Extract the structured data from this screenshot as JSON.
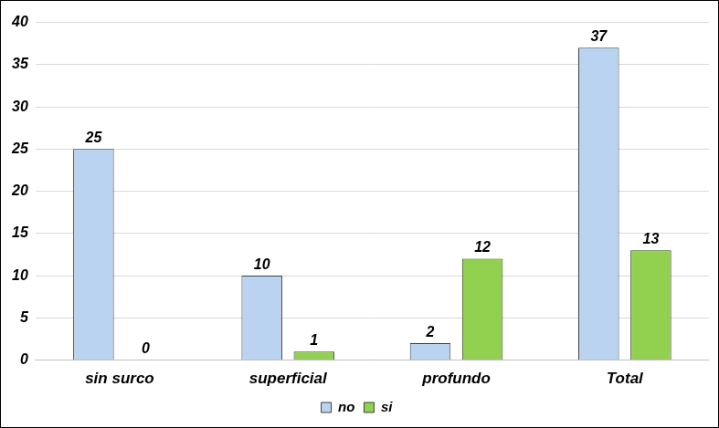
{
  "chart_data": {
    "type": "bar",
    "categories": [
      "sin surco",
      "superficial",
      "profundo",
      "Total"
    ],
    "series": [
      {
        "name": "no",
        "color": "#b9d3f1",
        "values": [
          25,
          10,
          2,
          37
        ]
      },
      {
        "name": "si",
        "color": "#92d050",
        "values": [
          0,
          1,
          12,
          13
        ]
      }
    ],
    "ylim": [
      0,
      40
    ],
    "yticks": [
      0,
      5,
      10,
      15,
      20,
      25,
      30,
      35,
      40
    ],
    "grid": true,
    "legend": "bottom",
    "data_labels": true
  }
}
